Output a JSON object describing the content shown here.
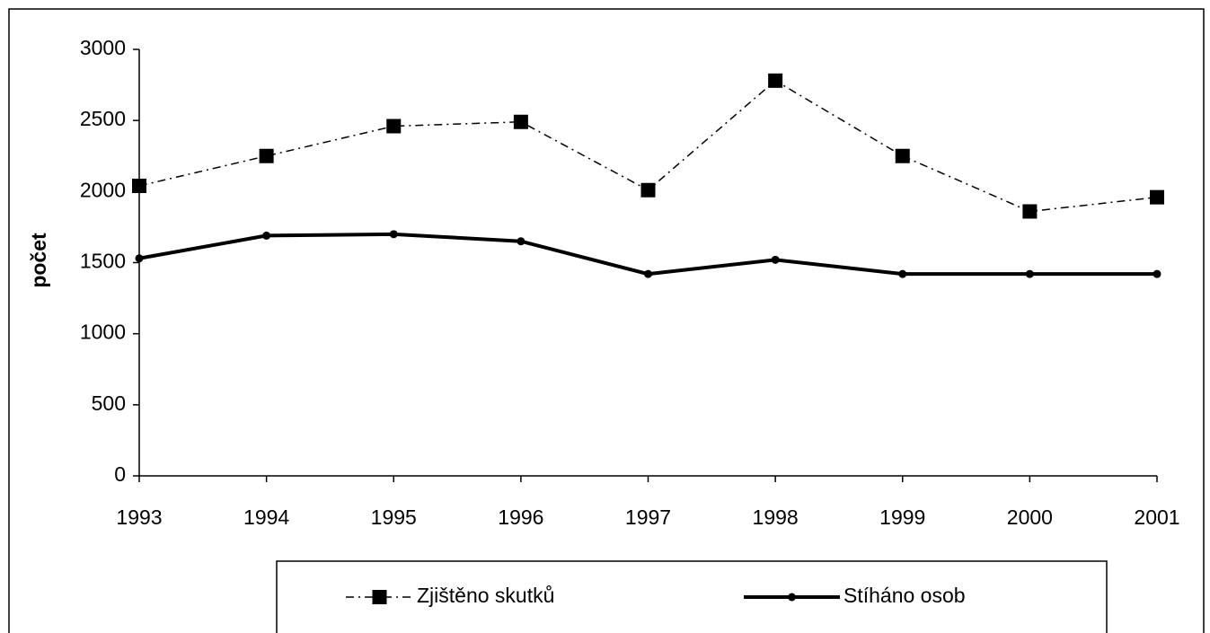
{
  "chart_data": {
    "type": "line",
    "y_label": "počet",
    "categories": [
      "1993",
      "1994",
      "1995",
      "1996",
      "1997",
      "1998",
      "1999",
      "2000",
      "2001"
    ],
    "series": [
      {
        "name": "Zjištěno skutků",
        "color": "#000000",
        "line_style": "dashdot",
        "marker": "square",
        "values": [
          2040,
          2250,
          2460,
          2490,
          2010,
          2780,
          2250,
          1860,
          1960
        ]
      },
      {
        "name": "Stíháno osob",
        "color": "#000000",
        "line_style": "solid",
        "marker": "circle",
        "values": [
          1530,
          1690,
          1700,
          1650,
          1420,
          1520,
          1420,
          1420,
          1420
        ]
      }
    ],
    "ylim": [
      0,
      3000
    ],
    "yticks": [
      0,
      500,
      1000,
      1500,
      2000,
      2500,
      3000
    ],
    "grid": false
  }
}
